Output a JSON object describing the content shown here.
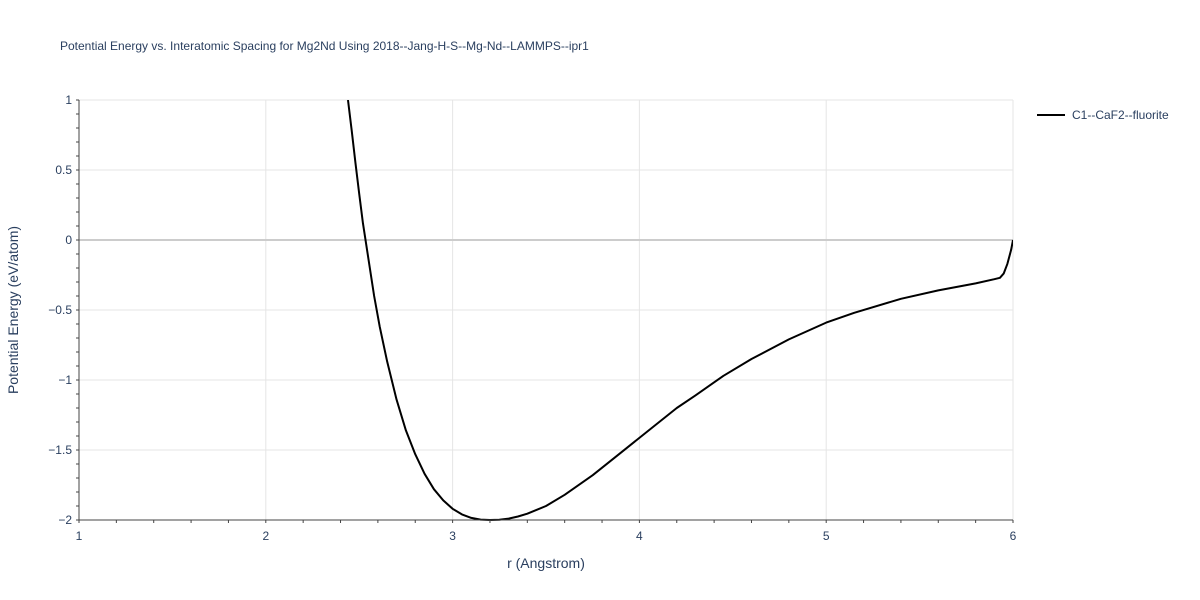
{
  "chart_data": {
    "type": "line",
    "title": "Potential Energy vs. Interatomic Spacing for Mg2Nd Using 2018--Jang-H-S--Mg-Nd--LAMMPS--ipr1",
    "xlabel": "r (Angstrom)",
    "ylabel": "Potential Energy (eV/atom)",
    "xlim": [
      1,
      6
    ],
    "ylim": [
      -2,
      1
    ],
    "x_ticks": [
      1,
      2,
      3,
      4,
      5,
      6
    ],
    "x_tick_labels": [
      "1",
      "2",
      "3",
      "4",
      "5",
      "6"
    ],
    "y_ticks": [
      1,
      0.5,
      0,
      -0.5,
      -1,
      -1.5,
      -2
    ],
    "y_tick_labels": [
      "1",
      "0.5",
      "0",
      "−0.5",
      "−1",
      "−1.5",
      "−2"
    ],
    "grid": true,
    "legend_position": "top-right",
    "series": [
      {
        "name": "C1--CaF2--fluorite",
        "color": "#000000",
        "x": [
          2.44,
          2.46,
          2.48,
          2.5,
          2.52,
          2.55,
          2.58,
          2.61,
          2.65,
          2.7,
          2.75,
          2.8,
          2.85,
          2.9,
          2.95,
          3.0,
          3.05,
          3.1,
          3.15,
          3.2,
          3.25,
          3.3,
          3.35,
          3.4,
          3.5,
          3.6,
          3.75,
          3.9,
          4.05,
          4.2,
          4.3,
          4.45,
          4.6,
          4.8,
          5.0,
          5.15,
          5.4,
          5.6,
          5.8,
          5.9,
          5.93,
          5.95,
          5.97,
          5.99,
          6.0
        ],
        "y": [
          1.0,
          0.78,
          0.55,
          0.33,
          0.12,
          -0.14,
          -0.4,
          -0.62,
          -0.87,
          -1.14,
          -1.36,
          -1.53,
          -1.67,
          -1.78,
          -1.86,
          -1.92,
          -1.96,
          -1.985,
          -1.997,
          -2.0,
          -1.998,
          -1.99,
          -1.975,
          -1.955,
          -1.9,
          -1.82,
          -1.68,
          -1.52,
          -1.36,
          -1.2,
          -1.11,
          -0.97,
          -0.85,
          -0.71,
          -0.59,
          -0.52,
          -0.42,
          -0.36,
          -0.31,
          -0.28,
          -0.27,
          -0.24,
          -0.17,
          -0.07,
          0.0
        ]
      }
    ]
  }
}
